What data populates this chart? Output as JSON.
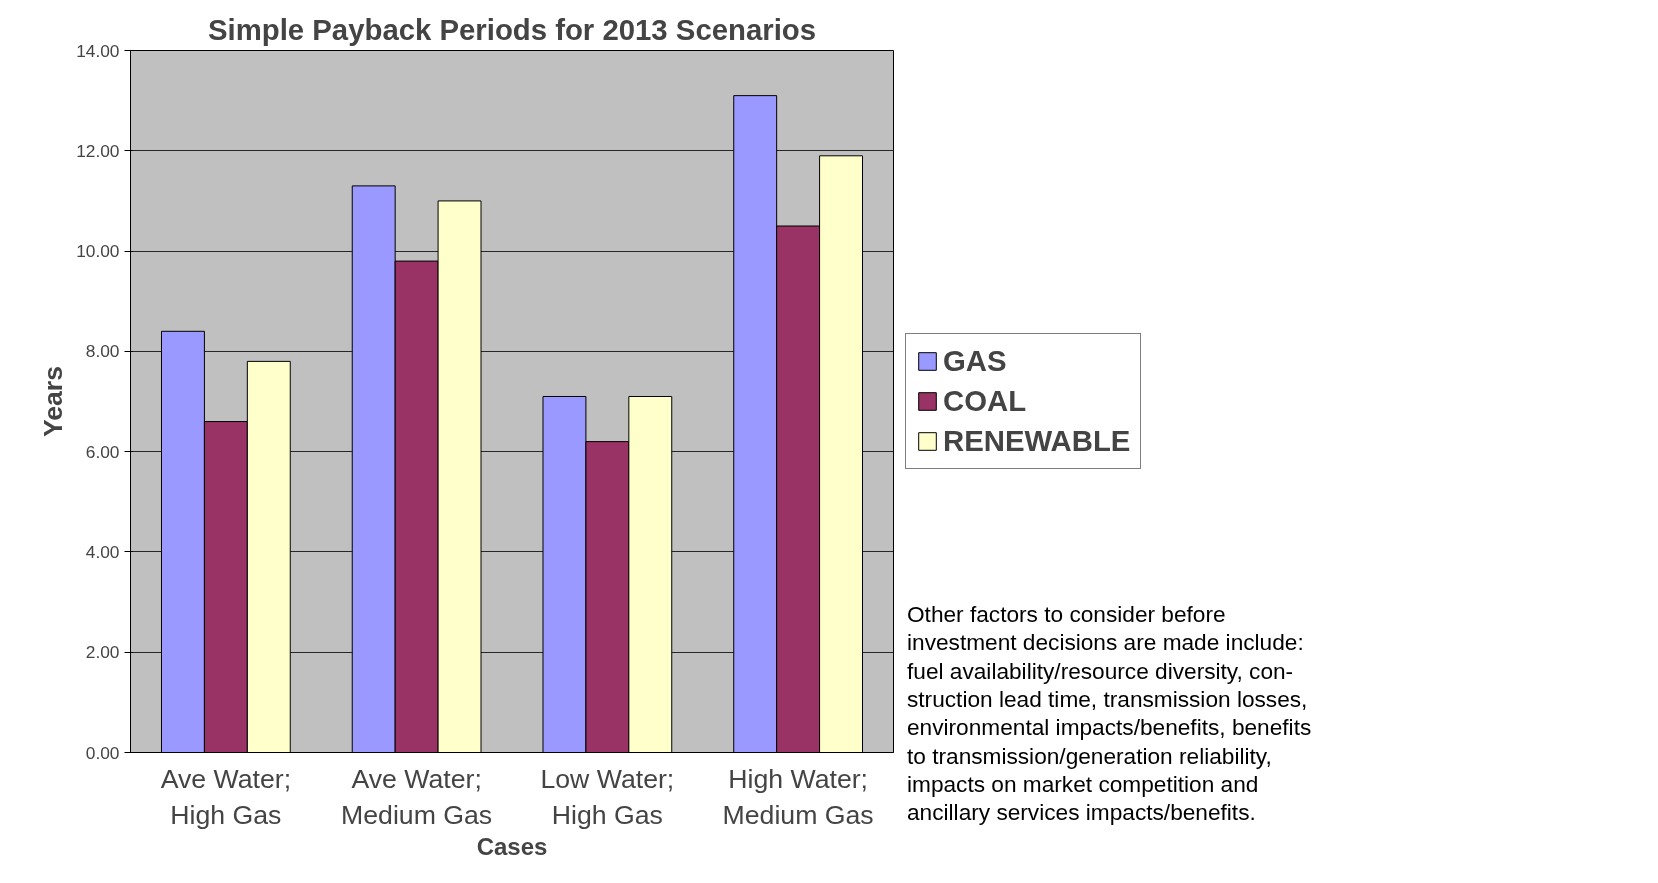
{
  "chart_data": {
    "type": "bar",
    "title": "Simple Payback Periods for 2013 Scenarios",
    "xlabel": "Cases",
    "ylabel": "Years",
    "categories": [
      "Ave Water;\nHigh Gas",
      "Ave Water;\nMedium Gas",
      "Low Water;\nHigh Gas",
      "High Water;\nMedium Gas"
    ],
    "series": [
      {
        "name": "GAS",
        "color": "#9999ff",
        "values": [
          8.4,
          11.3,
          7.1,
          13.1
        ]
      },
      {
        "name": "COAL",
        "color": "#993366",
        "values": [
          6.6,
          9.8,
          6.2,
          10.5
        ]
      },
      {
        "name": "RENEWABLE",
        "color": "#ffffcc",
        "values": [
          7.8,
          11.0,
          7.1,
          11.9
        ]
      }
    ],
    "ylim": [
      0,
      14
    ],
    "yticks": [
      {
        "value": 0,
        "label": "0.00"
      },
      {
        "value": 2,
        "label": "2.00"
      },
      {
        "value": 4,
        "label": "4.00"
      },
      {
        "value": 6,
        "label": "6.00"
      },
      {
        "value": 8,
        "label": "8.00"
      },
      {
        "value": 10,
        "label": "10.00"
      },
      {
        "value": 12,
        "label": "12.00"
      },
      {
        "value": 14,
        "label": "14.00"
      }
    ],
    "grid": "y",
    "legend": "right",
    "annotations": [
      "Other factors to consider before\ninvestment decisions are made include:\nfuel availability/resource diversity, con-\nstruction lead time, transmission losses,\nenvironmental impacts/benefits, benefits\nto transmission/generation reliability,\nimpacts on market competition and\nancillary services impacts/benefits."
    ]
  }
}
